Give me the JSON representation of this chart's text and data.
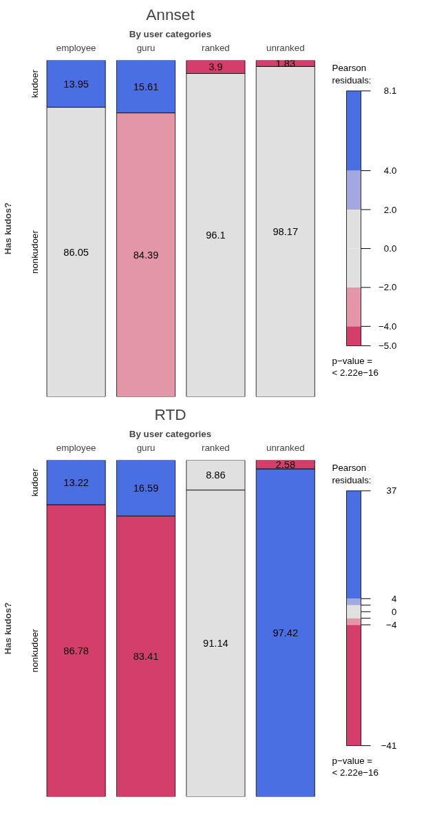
{
  "chart_data": [
    {
      "type": "bar",
      "title": "Annset",
      "xlabel": "By user categories",
      "ylabel": "Has kudos?",
      "categories": [
        "employee",
        "guru",
        "ranked",
        "unranked"
      ],
      "stacked": true,
      "data_labels": true,
      "tick_labels": "x",
      "clabel": "Pearson residuals:",
      "clim": [
        -5,
        8.1
      ],
      "cticks": [
        {
          "value": -5,
          "label": "−5.0"
        },
        {
          "value": -4,
          "label": "−4.0"
        },
        {
          "value": -2,
          "label": "−2.0"
        },
        {
          "value": 0,
          "label": "0.0"
        },
        {
          "value": 2,
          "label": "2.0"
        },
        {
          "value": 4,
          "label": "4.0"
        },
        8.1
      ],
      "annotations": [
        "p−value =",
        "< 2.22e−16"
      ],
      "series": [
        {
          "name": "nonkudoer",
          "colors": [
            "#e0e0e0",
            "#e296a8",
            "#e0e0e0",
            "#e0e0e0"
          ],
          "values": [
            86.05,
            84.39,
            96.1,
            98.17
          ]
        },
        {
          "name": "kudoer",
          "colors": [
            "#4a6fe3",
            "#4a6fe3",
            "#d33f6a",
            "#d33f6a"
          ],
          "values": [
            13.95,
            15.61,
            3.9,
            1.83
          ]
        }
      ]
    },
    {
      "type": "bar",
      "title": "RTD",
      "xlabel": "By user categories",
      "ylabel": "Has kudos?",
      "categories": [
        "employee",
        "guru",
        "ranked",
        "unranked"
      ],
      "stacked": true,
      "data_labels": true,
      "tick_labels": "x",
      "clabel": "Pearson residuals:",
      "clim": [
        -41,
        37
      ],
      "cticks": [
        -41,
        -4,
        {
          "value": -2,
          "label": null
        },
        0,
        {
          "value": 2,
          "label": null
        },
        4,
        37
      ],
      "annotations": [
        "p−value =",
        "< 2.22e−16"
      ],
      "series": [
        {
          "name": "nonkudoer",
          "colors": [
            "#d33f6a",
            "#d33f6a",
            "#e0e0e0",
            "#4a6fe3"
          ],
          "values": [
            86.78,
            83.41,
            91.14,
            97.42
          ]
        },
        {
          "name": "kudoer",
          "colors": [
            "#4a6fe3",
            "#4a6fe3",
            "#e0e0e0",
            "#d33f6a"
          ],
          "values": [
            13.22,
            16.59,
            8.86,
            2.58
          ]
        }
      ]
    }
  ]
}
